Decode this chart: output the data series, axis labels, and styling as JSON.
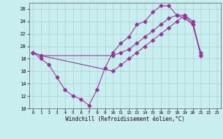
{
  "title": "",
  "xlabel": "Windchill (Refroidissement éolien,°C)",
  "background_color": "#c8eef0",
  "grid_color": "#aacccc",
  "line_color": "#993399",
  "xlim": [
    -0.5,
    23.5
  ],
  "ylim": [
    10,
    27
  ],
  "yticks": [
    10,
    12,
    14,
    16,
    18,
    20,
    22,
    24,
    26
  ],
  "xticks": [
    0,
    1,
    2,
    3,
    4,
    5,
    6,
    7,
    8,
    9,
    10,
    11,
    12,
    13,
    14,
    15,
    16,
    17,
    18,
    19,
    20,
    21,
    22,
    23
  ],
  "series": [
    {
      "x": [
        0,
        1,
        2,
        3,
        4,
        5,
        6,
        7,
        8,
        9,
        10,
        11,
        12,
        13,
        14,
        15,
        16,
        17,
        18,
        19,
        20,
        21
      ],
      "y": [
        19.0,
        18.0,
        17.0,
        15.0,
        13.0,
        12.0,
        11.5,
        10.5,
        13.0,
        16.5,
        19.0,
        20.5,
        21.5,
        23.5,
        24.0,
        25.5,
        26.5,
        26.5,
        25.0,
        24.5,
        23.5,
        18.5
      ]
    },
    {
      "x": [
        0,
        1,
        10,
        11,
        12,
        13,
        14,
        15,
        16,
        17,
        18,
        19,
        20,
        21
      ],
      "y": [
        19.0,
        18.5,
        18.5,
        19.0,
        19.5,
        20.5,
        21.5,
        22.5,
        23.5,
        24.5,
        25.0,
        25.0,
        23.5,
        19.0
      ]
    },
    {
      "x": [
        0,
        1,
        10,
        11,
        12,
        13,
        14,
        15,
        16,
        17,
        18,
        19,
        20,
        21
      ],
      "y": [
        19.0,
        18.5,
        16.0,
        17.0,
        18.0,
        19.0,
        20.0,
        21.0,
        22.0,
        23.0,
        24.0,
        25.0,
        24.0,
        18.5
      ]
    }
  ]
}
